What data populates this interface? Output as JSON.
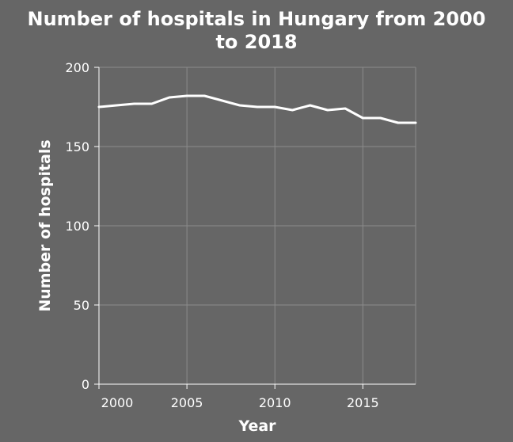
{
  "chart_data": {
    "type": "line",
    "title_line1": "Number of hospitals in Hungary from 2000",
    "title_line2": "to 2018",
    "xlabel": "Year",
    "ylabel": "Number of hospitals",
    "xlim": [
      2000,
      2018
    ],
    "ylim": [
      0,
      200
    ],
    "x_ticks": [
      2000,
      2005,
      2010,
      2015
    ],
    "y_ticks": [
      0,
      50,
      100,
      150,
      200
    ],
    "grid": true,
    "series": [
      {
        "color": "#ffffff",
        "x": [
          2000,
          2001,
          2002,
          2003,
          2004,
          2005,
          2006,
          2007,
          2008,
          2009,
          2010,
          2011,
          2012,
          2013,
          2014,
          2015,
          2016,
          2017,
          2018
        ],
        "y": [
          175,
          176,
          177,
          177,
          181,
          182,
          182,
          179,
          176,
          175,
          175,
          173,
          176,
          173,
          174,
          168,
          168,
          165,
          165
        ]
      }
    ]
  },
  "colors": {
    "background": "#666666",
    "text": "#ffffff",
    "grid": "#8c8c8c",
    "axis": "#ffffff"
  }
}
